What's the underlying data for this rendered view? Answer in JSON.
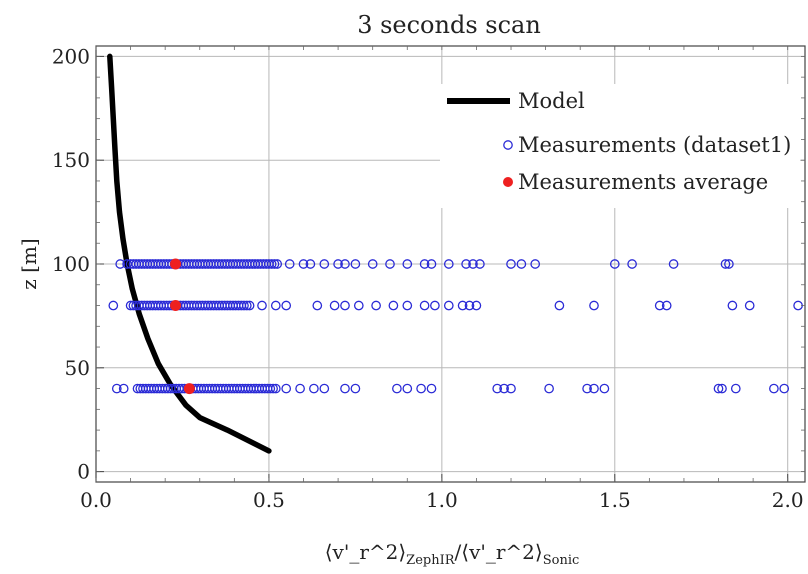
{
  "chart_data": {
    "type": "scatter",
    "title": "3 seconds scan",
    "ylabel": "z [m]",
    "xlabel": {
      "numerator_symbol": "⟨v'_r^2⟩",
      "numerator_subscript": "ZephIR",
      "denominator_symbol": "⟨v'_r^2⟩",
      "denominator_subscript": "Sonic"
    },
    "xlim": [
      0,
      2.05
    ],
    "ylim": [
      -5,
      205
    ],
    "xticks": [
      "0.0",
      "0.5",
      "1.0",
      "1.5",
      "2.0"
    ],
    "yticks": [
      "0",
      "50",
      "100",
      "150",
      "200"
    ],
    "grid": true,
    "legend": {
      "position": "top-right",
      "entries": [
        "Model",
        "Measurements (dataset1)",
        "Measurements average"
      ]
    },
    "colors": {
      "model": "#000000",
      "measurements": "#2b2bd6",
      "average": "#ee2020"
    },
    "series": [
      {
        "name": "Model",
        "style": "line",
        "x": [
          0.04,
          0.045,
          0.05,
          0.055,
          0.06,
          0.068,
          0.078,
          0.09,
          0.105,
          0.125,
          0.15,
          0.18,
          0.215,
          0.26,
          0.3,
          0.38,
          0.5
        ],
        "y": [
          200,
          185,
          170,
          155,
          140,
          125,
          112,
          100,
          88,
          76,
          64,
          52,
          42,
          32,
          26,
          20,
          10
        ]
      },
      {
        "name": "Measurements (dataset1)",
        "style": "open-circle",
        "groups": [
          {
            "y": 100,
            "x_dense_range": [
              0.1,
              0.53
            ],
            "x": [
              0.07,
              0.09,
              0.56,
              0.6,
              0.62,
              0.66,
              0.7,
              0.72,
              0.75,
              0.8,
              0.85,
              0.9,
              0.95,
              0.97,
              1.02,
              1.07,
              1.09,
              1.11,
              1.2,
              1.23,
              1.27,
              1.5,
              1.55,
              1.67,
              1.82,
              1.83
            ]
          },
          {
            "y": 80,
            "x_dense_range": [
              0.1,
              0.45
            ],
            "x": [
              0.05,
              0.48,
              0.52,
              0.55,
              0.64,
              0.69,
              0.72,
              0.76,
              0.81,
              0.86,
              0.9,
              0.95,
              0.98,
              1.02,
              1.06,
              1.08,
              1.1,
              1.34,
              1.44,
              1.63,
              1.65,
              1.84,
              1.89,
              2.03
            ]
          },
          {
            "y": 40,
            "x_dense_range": [
              0.12,
              0.52
            ],
            "x": [
              0.06,
              0.08,
              0.55,
              0.59,
              0.63,
              0.66,
              0.72,
              0.75,
              0.87,
              0.9,
              0.94,
              0.97,
              1.16,
              1.18,
              1.2,
              1.31,
              1.42,
              1.44,
              1.47,
              1.8,
              1.81,
              1.85,
              1.96,
              1.99
            ]
          }
        ]
      },
      {
        "name": "Measurements average",
        "style": "filled-circle",
        "x": [
          0.23,
          0.23,
          0.27
        ],
        "y": [
          100,
          80,
          40
        ]
      }
    ]
  }
}
